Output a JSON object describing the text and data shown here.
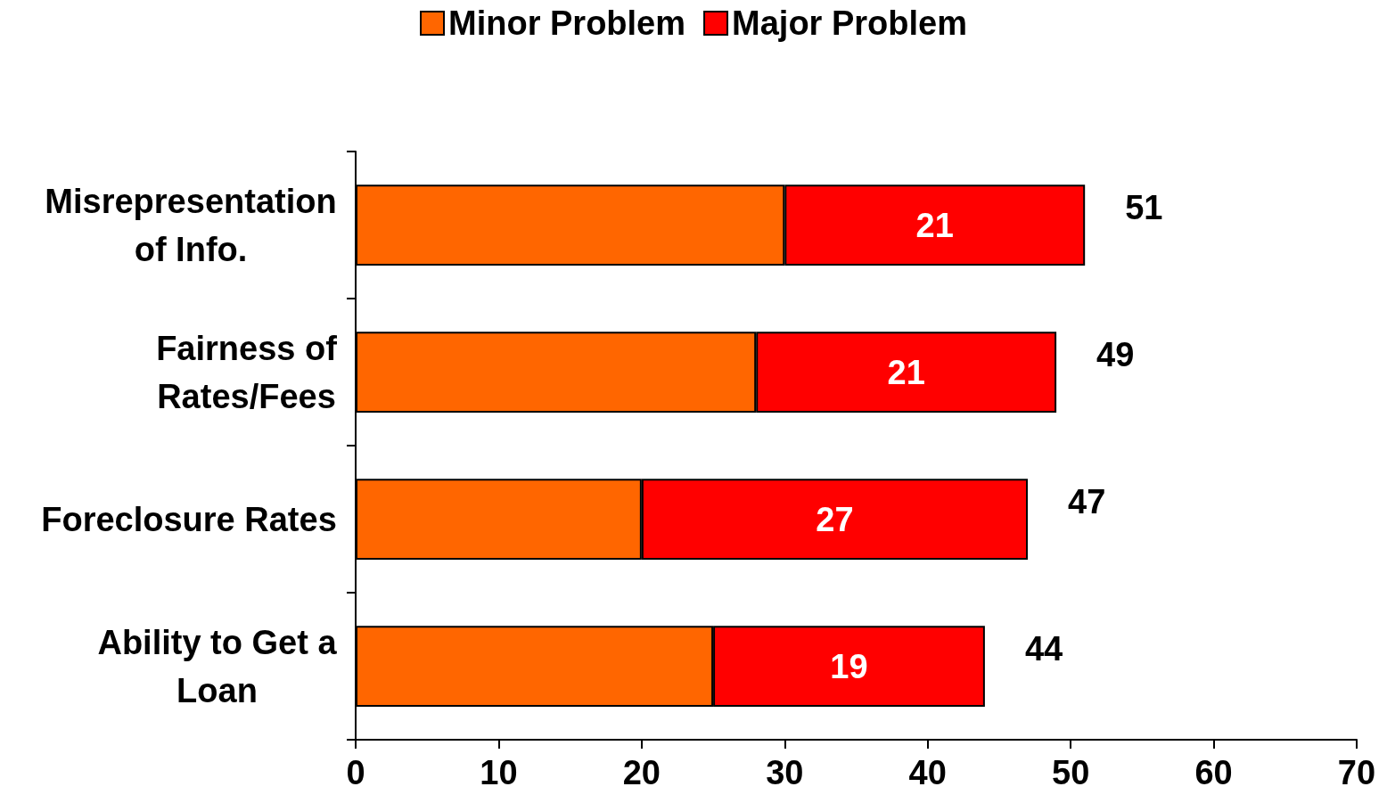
{
  "chart_data": {
    "type": "bar",
    "orientation": "horizontal",
    "stacked": true,
    "categories": [
      "Misrepresentation of Info.",
      "Fairness of Rates/Fees",
      "Foreclosure Rates",
      "Ability to Get a Loan"
    ],
    "series": [
      {
        "name": "Minor Problem",
        "color": "#ff6600",
        "values": [
          30,
          28,
          20,
          25
        ]
      },
      {
        "name": "Major Problem",
        "color": "#ff0000",
        "values": [
          21,
          21,
          27,
          19
        ],
        "value_labels": [
          "21",
          "21",
          "27",
          "19"
        ]
      }
    ],
    "totals": [
      "51",
      "49",
      "47",
      "44"
    ],
    "xlim": [
      0,
      70
    ],
    "xticks": [
      0,
      10,
      20,
      30,
      40,
      50,
      60,
      70
    ],
    "legend": "top",
    "grid": false
  }
}
